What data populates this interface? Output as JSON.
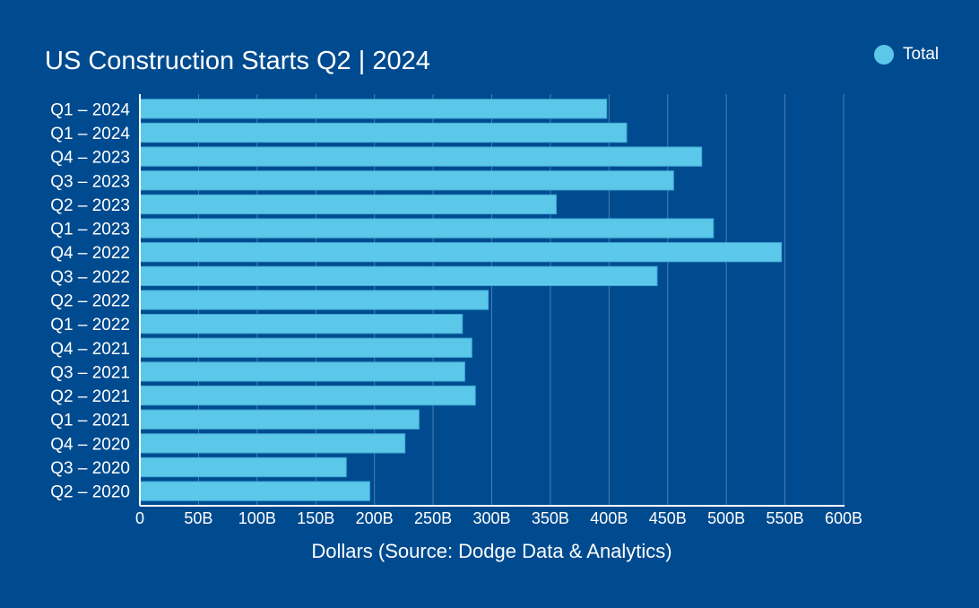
{
  "chart_data": {
    "type": "bar",
    "orientation": "horizontal",
    "title": "US Construction Starts Q2 | 2024",
    "xlabel": "Dollars (Source: Dodge Data & Analytics)",
    "ylabel": "",
    "categories": [
      "Q1 – 2024",
      "Q1 – 2024",
      "Q4 – 2023",
      "Q3 – 2023",
      "Q2 – 2023",
      "Q1 – 2023",
      "Q4 – 2022",
      "Q3 – 2022",
      "Q2 – 2022",
      "Q1 – 2022",
      "Q4 – 2021",
      "Q3 – 2021",
      "Q2 – 2021",
      "Q1 – 2021",
      "Q4 – 2020",
      "Q3 – 2020",
      "Q2 – 2020"
    ],
    "series": [
      {
        "name": "Total",
        "values": [
          398,
          415,
          479,
          455,
          355,
          489,
          547,
          441,
          297,
          275,
          283,
          277,
          286,
          238,
          226,
          176,
          196
        ]
      }
    ],
    "xlim": [
      0,
      600
    ],
    "ticks": [
      0,
      50,
      100,
      150,
      200,
      250,
      300,
      350,
      400,
      450,
      500,
      550,
      600
    ],
    "tick_labels": [
      "0",
      "50B",
      "100B",
      "150B",
      "200B",
      "250B",
      "300B",
      "350B",
      "400B",
      "450B",
      "500B",
      "550B",
      "600B"
    ],
    "grid": true,
    "legend_position": "top-right",
    "bar_color": "#5bc8ea",
    "background_color": "#004b8f"
  }
}
